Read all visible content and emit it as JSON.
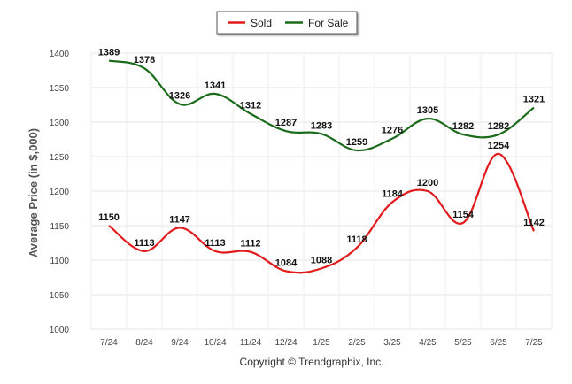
{
  "chart_data": {
    "type": "line",
    "categories": [
      "7/24",
      "8/24",
      "9/24",
      "10/24",
      "11/24",
      "12/24",
      "1/25",
      "2/25",
      "3/25",
      "4/25",
      "5/25",
      "6/25",
      "7/25"
    ],
    "series": [
      {
        "name": "Sold",
        "color": "#e31a1c",
        "values": [
          1150,
          1113,
          1147,
          1113,
          1112,
          1084,
          1088,
          1118,
          1184,
          1200,
          1154,
          1254,
          1142
        ]
      },
      {
        "name": "For Sale",
        "color": "#1a6b1a",
        "values": [
          1389,
          1378,
          1326,
          1341,
          1312,
          1287,
          1283,
          1259,
          1276,
          1305,
          1282,
          1282,
          1321
        ]
      }
    ],
    "ylabel": "Average Price (in $,000)",
    "xlabel": "",
    "ylim": [
      1000,
      1400
    ],
    "yticks": [
      1000,
      1050,
      1100,
      1150,
      1200,
      1250,
      1300,
      1350,
      1400
    ],
    "grid": true,
    "legend": "top-center"
  },
  "footer": {
    "credit": "Copyright © Trendgraphix, Inc."
  }
}
